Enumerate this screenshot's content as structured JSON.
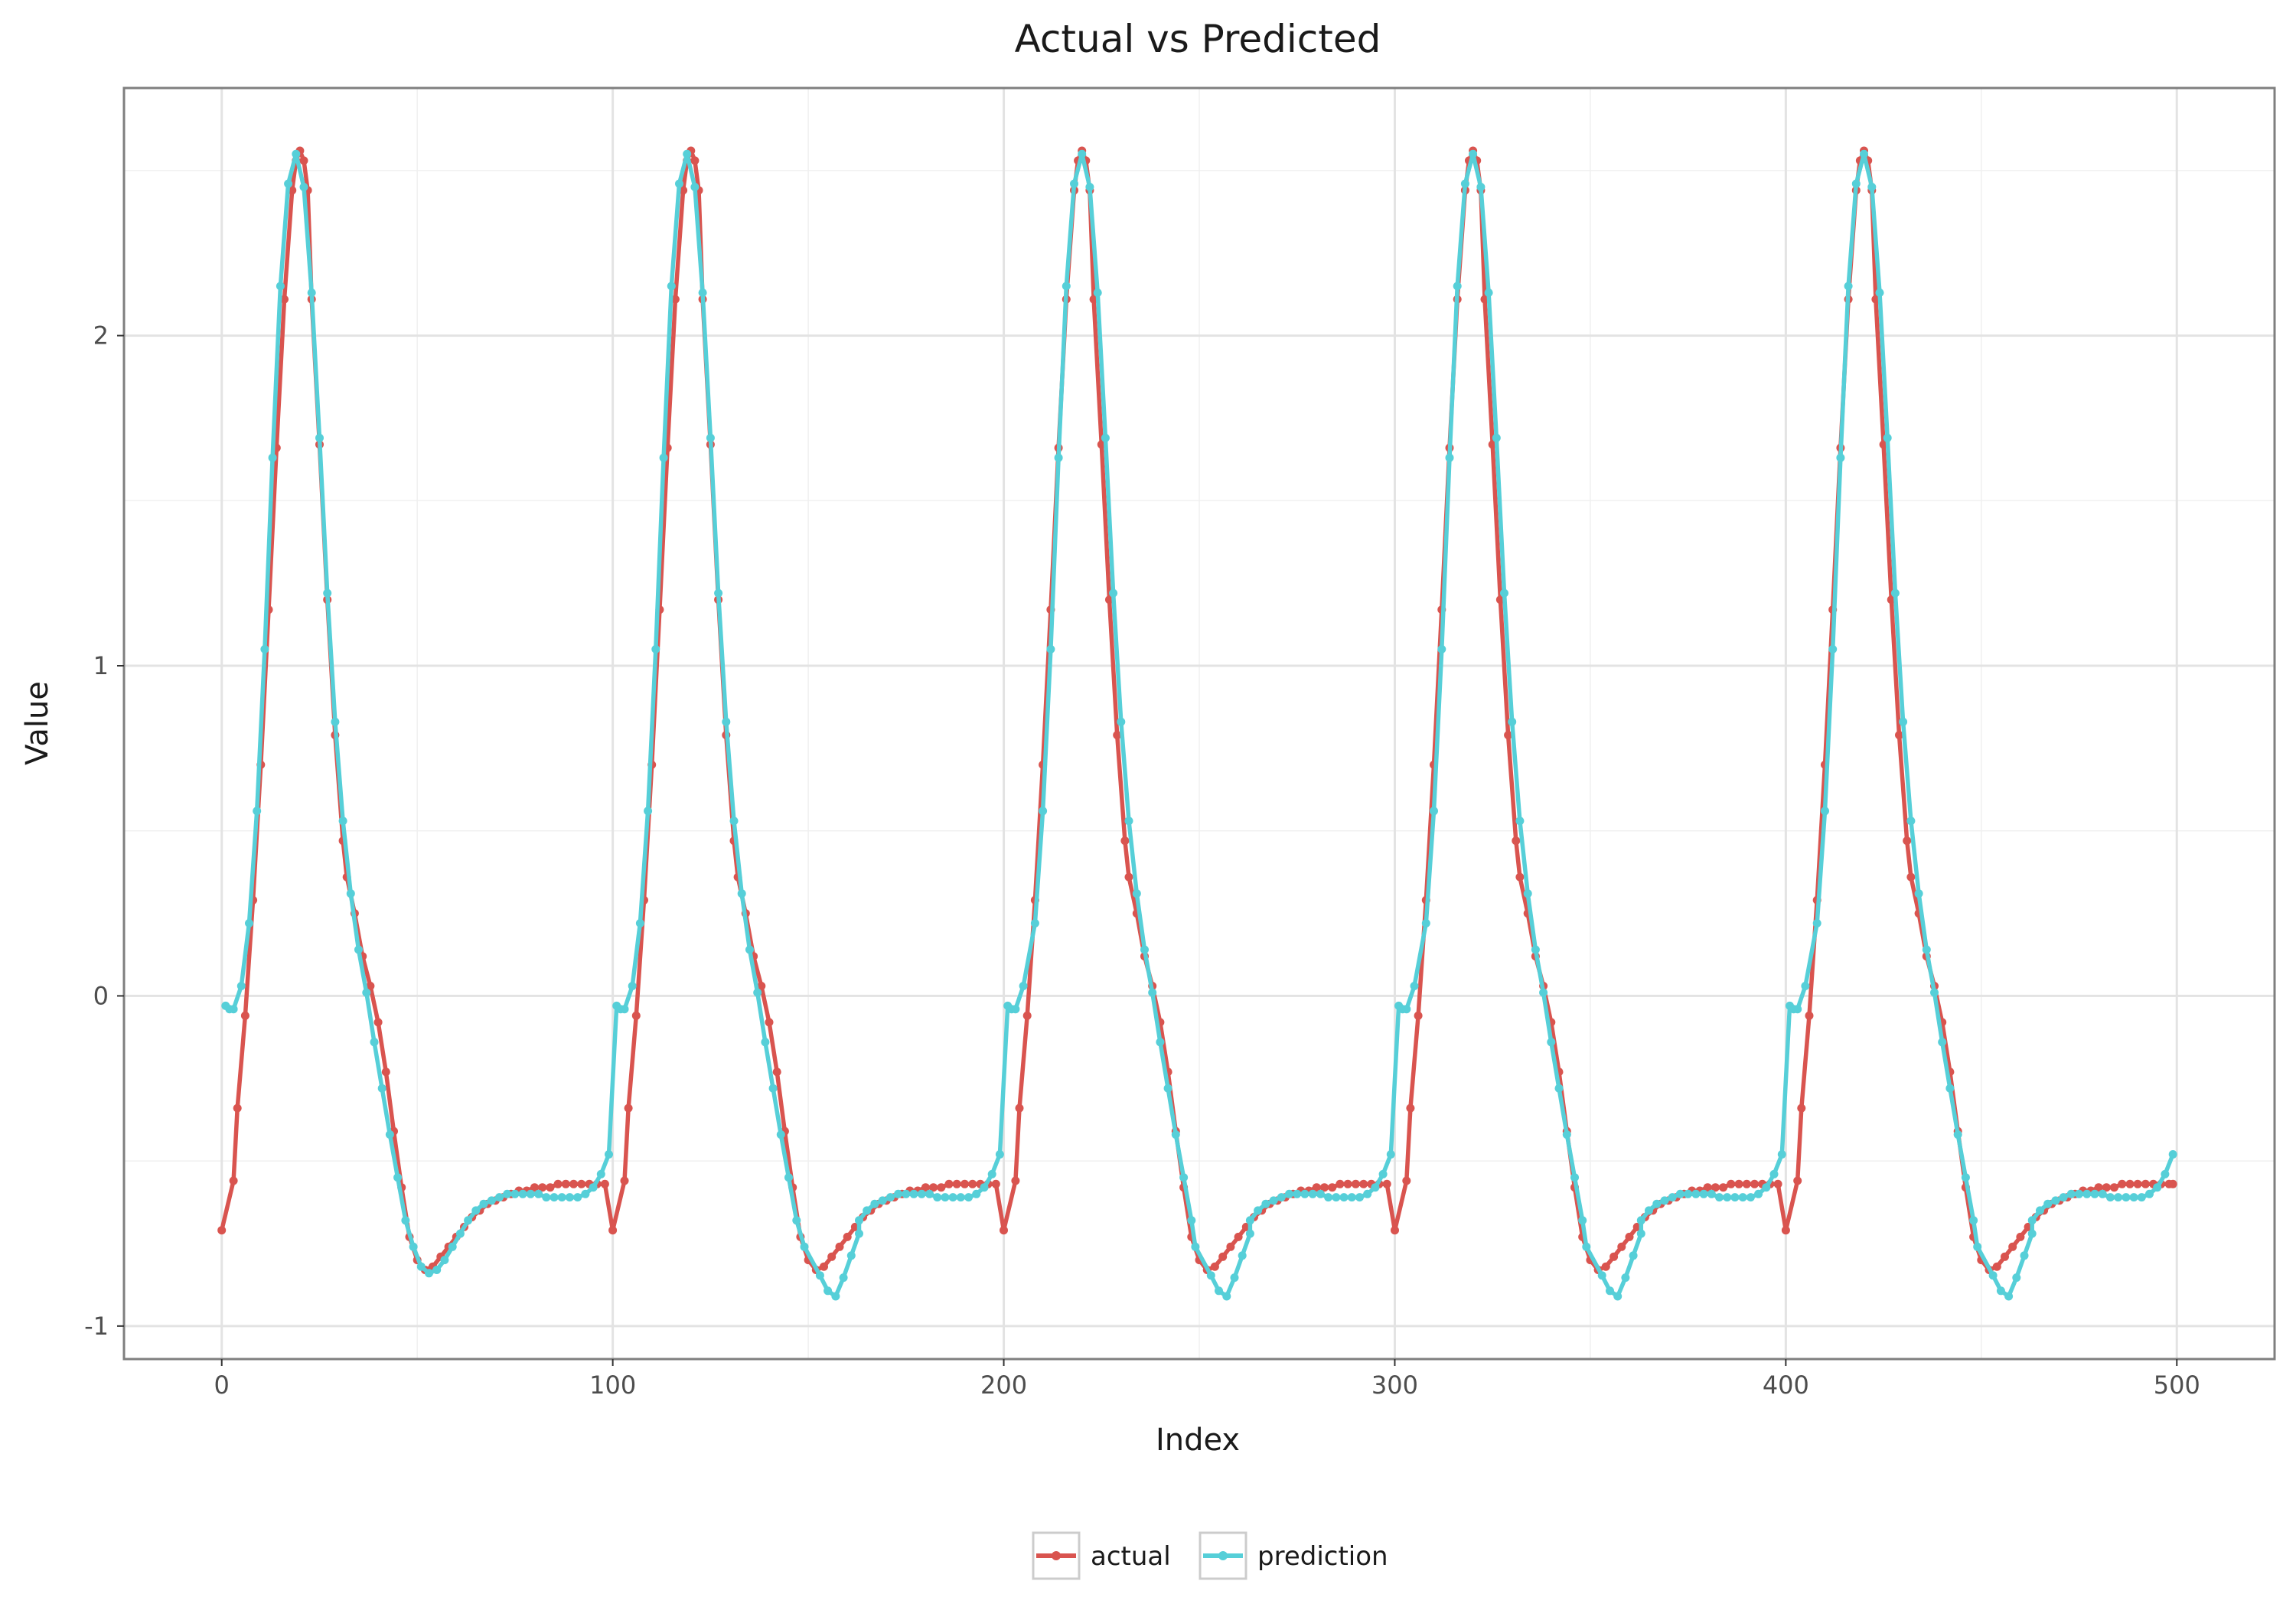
{
  "chart_data": {
    "type": "line",
    "title": "Actual vs Predicted",
    "xlabel": "Index",
    "ylabel": "Value",
    "xlim": [
      -25,
      525
    ],
    "ylim": [
      -1.1,
      2.75
    ],
    "x_ticks": [
      0,
      100,
      200,
      300,
      400,
      500
    ],
    "x_tick_labels": [
      "0",
      "100",
      "200",
      "300",
      "400",
      "500"
    ],
    "y_ticks": [
      -1,
      0,
      1,
      2
    ],
    "y_tick_labels": [
      "-1",
      "0",
      "1",
      "2"
    ],
    "grid": true,
    "legend_position": "bottom",
    "period": 100,
    "series": [
      {
        "name": "actual",
        "color": "#d9544f",
        "x": [
          0,
          3,
          4,
          6,
          8,
          10,
          12,
          14,
          16,
          18,
          19,
          20,
          21,
          22,
          23,
          25,
          27,
          29,
          31,
          32,
          34,
          36,
          38,
          40,
          42,
          44,
          46,
          48,
          50,
          52,
          54,
          56,
          58,
          60,
          62,
          64,
          66,
          68,
          70,
          72,
          74,
          76,
          78,
          80,
          82,
          84,
          86,
          88,
          90,
          92,
          94,
          96,
          98
        ],
        "y": [
          -0.71,
          -0.56,
          -0.34,
          -0.06,
          0.29,
          0.7,
          1.17,
          1.66,
          2.11,
          2.44,
          2.53,
          2.56,
          2.53,
          2.44,
          2.11,
          1.67,
          1.2,
          0.79,
          0.47,
          0.36,
          0.25,
          0.12,
          0.03,
          -0.08,
          -0.23,
          -0.41,
          -0.58,
          -0.73,
          -0.8,
          -0.83,
          -0.82,
          -0.79,
          -0.76,
          -0.73,
          -0.7,
          -0.67,
          -0.65,
          -0.63,
          -0.62,
          -0.61,
          -0.6,
          -0.59,
          -0.59,
          -0.58,
          -0.58,
          -0.58,
          -0.57,
          -0.57,
          -0.57,
          -0.57,
          -0.57,
          -0.57,
          -0.57
        ]
      },
      {
        "name": "prediction",
        "color": "#56cfd8",
        "x": [
          1,
          2,
          3,
          5,
          7,
          9,
          11,
          13,
          15,
          17,
          19,
          21,
          23,
          25,
          27,
          29,
          31,
          33,
          35,
          37,
          39,
          41,
          43,
          45,
          47,
          49,
          51,
          53,
          55,
          57,
          59,
          61,
          63,
          65,
          67,
          69,
          71,
          73,
          75,
          77,
          79,
          81,
          83,
          85,
          87,
          89,
          91,
          93,
          95,
          97,
          99
        ],
        "y": [
          -0.03,
          -0.04,
          -0.04,
          0.03,
          0.22,
          0.56,
          1.05,
          1.63,
          2.15,
          2.46,
          2.55,
          2.45,
          2.13,
          1.69,
          1.22,
          0.83,
          0.53,
          0.31,
          0.14,
          0.01,
          -0.14,
          -0.28,
          -0.42,
          -0.55,
          -0.68,
          -0.76,
          -0.82,
          -0.84,
          -0.83,
          -0.8,
          -0.76,
          -0.72,
          -0.68,
          -0.65,
          -0.63,
          -0.62,
          -0.61,
          -0.6,
          -0.6,
          -0.6,
          -0.6,
          -0.6,
          -0.61,
          -0.61,
          -0.61,
          -0.61,
          -0.61,
          -0.6,
          -0.58,
          -0.54,
          -0.48
        ],
        "cycle_offsets": [
          0,
          0,
          0.1,
          0.1,
          0.1
        ],
        "trough_shift": [
          0,
          1,
          1,
          1,
          1
        ],
        "trough_extra_dip": [
          0,
          0.08,
          0.08,
          0.08,
          0.08
        ]
      }
    ]
  }
}
